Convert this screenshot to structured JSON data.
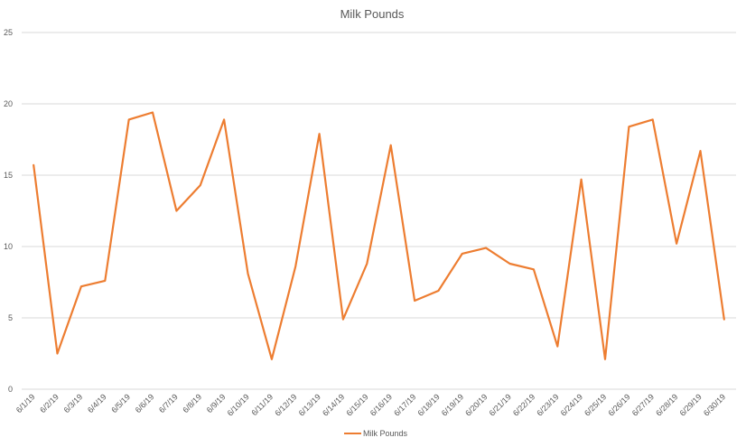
{
  "chart_data": {
    "type": "line",
    "title": "Milk Pounds",
    "xlabel": "",
    "ylabel": "",
    "ylim": [
      0,
      25
    ],
    "yticks": [
      0,
      5,
      10,
      15,
      20,
      25
    ],
    "grid": true,
    "legend_position": "bottom",
    "categories": [
      "6/1/19",
      "6/2/19",
      "6/3/19",
      "6/4/19",
      "6/5/19",
      "6/6/19",
      "6/7/19",
      "6/8/19",
      "6/9/19",
      "6/10/19",
      "6/11/19",
      "6/12/19",
      "6/13/19",
      "6/14/19",
      "6/15/19",
      "6/16/19",
      "6/17/19",
      "6/18/19",
      "6/19/19",
      "6/20/19",
      "6/21/19",
      "6/22/19",
      "6/23/19",
      "6/24/19",
      "6/25/19",
      "6/26/19",
      "6/27/19",
      "6/28/19",
      "6/29/19",
      "6/30/19"
    ],
    "series": [
      {
        "name": "Milk Pounds",
        "color": "#ED7D31",
        "values": [
          15.7,
          2.5,
          7.2,
          7.6,
          18.9,
          19.4,
          12.5,
          14.3,
          18.9,
          8.1,
          2.1,
          8.6,
          17.9,
          4.9,
          8.8,
          17.1,
          6.2,
          6.9,
          9.5,
          9.9,
          8.8,
          8.4,
          3.0,
          14.7,
          2.1,
          18.4,
          18.9,
          10.2,
          16.7,
          4.9
        ]
      }
    ]
  }
}
